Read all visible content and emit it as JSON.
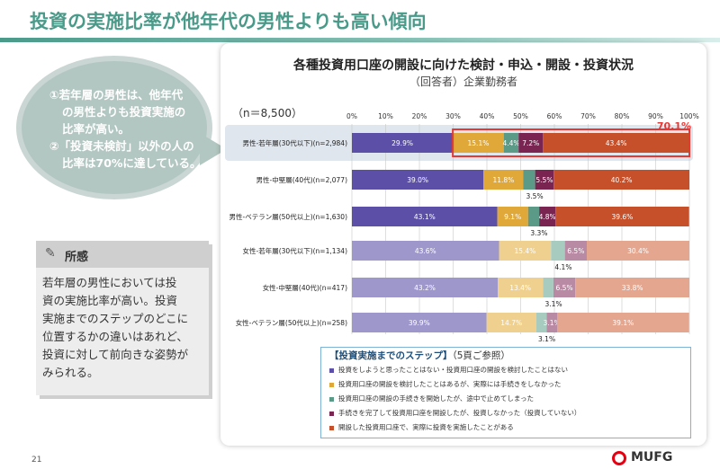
{
  "page": {
    "title": "投資の実施比率が他年代の男性よりも高い傾向",
    "page_number": "21"
  },
  "bubble": {
    "lines": [
      "①若年層の男性は、他年代",
      "の男性よりも投資実施の",
      "比率が高い。",
      "②「投資未検討」以外の人の",
      "比率は70%に達している。"
    ]
  },
  "insight": {
    "title": "所感",
    "lines": [
      "若年層の男性においては投",
      "資の実施比率が高い。投資",
      "実施までのステップのどこに",
      "位置するかの違いはあれど、",
      "投資に対して前向きな姿勢が",
      "みられる。"
    ]
  },
  "chart_data": {
    "type": "bar",
    "stacked": true,
    "orientation": "horizontal",
    "title": "各種投資用口座の開設に向けた検討・申込・開設・投資状況",
    "subtitle": "（回答者）企業勤務者",
    "sample_size": "（n＝8,500）",
    "xlim": [
      0,
      100
    ],
    "x_ticks": [
      "0%",
      "10%",
      "20%",
      "30%",
      "40%",
      "50%",
      "60%",
      "70%",
      "80%",
      "90%",
      "100%"
    ],
    "categories": [
      "男性-若年層(30代以下)(n=2,984)",
      "男性-中堅層(40代)(n=2,077)",
      "男性-ベテラン層(50代以上)(n=1,630)",
      "女性-若年層(30代以下)(n=1,134)",
      "女性-中堅層(40代)(n=417)",
      "女性-ベテラン層(50代以上)(n=258)"
    ],
    "series": [
      {
        "name": "投資をしようと思ったことはない・投資用口座の開設を検討したことはない",
        "values": [
          29.9,
          39.0,
          43.1,
          43.6,
          43.2,
          39.9
        ]
      },
      {
        "name": "投資用口座の開設を検討したことはあるが、実際には手続きをしなかった",
        "values": [
          15.1,
          11.8,
          9.1,
          15.4,
          13.4,
          14.7
        ]
      },
      {
        "name": "投資用口座の開設の手続きを開始したが、途中で止めてしまった",
        "values": [
          4.4,
          3.5,
          3.3,
          4.1,
          3.1,
          3.1
        ]
      },
      {
        "name": "手続きを完了して投資用口座を開設したが、投資しなかった（投資していない）",
        "values": [
          7.2,
          5.5,
          4.8,
          6.5,
          6.5,
          3.1
        ]
      },
      {
        "name": "開設した投資用口座で、実際に投資を実施したことがある",
        "values": [
          43.4,
          40.2,
          39.6,
          30.4,
          33.8,
          39.1
        ]
      }
    ],
    "labels": [
      [
        "29.9%",
        "15.1%",
        "4.4%",
        "7.2%",
        "43.4%"
      ],
      [
        "39.0%",
        "11.8%",
        "3.5%",
        "5.5%",
        "40.2%"
      ],
      [
        "43.1%",
        "9.1%",
        "3.3%",
        "4.8%",
        "39.6%"
      ],
      [
        "43.6%",
        "15.4%",
        "4.1%",
        "6.5%",
        "30.4%"
      ],
      [
        "43.2%",
        "13.4%",
        "3.1%",
        "6.5%",
        "33.8%"
      ],
      [
        "39.9%",
        "14.7%",
        "3.1%",
        "3.1%",
        "39.1%"
      ]
    ],
    "highlight_row": 0,
    "highlight_value": "70.1%",
    "colors": [
      "#5b4fa8",
      "#e0a838",
      "#5a9a86",
      "#7a2452",
      "#c6502a"
    ],
    "colors_light": [
      "#9e97cc",
      "#efd08e",
      "#a8cbc0",
      "#b88aa4",
      "#e5a68f"
    ],
    "legend_title": "【投資実施までのステップ】",
    "legend_note": "（5頁ご参照）"
  },
  "logo": {
    "text": "MUFG"
  }
}
